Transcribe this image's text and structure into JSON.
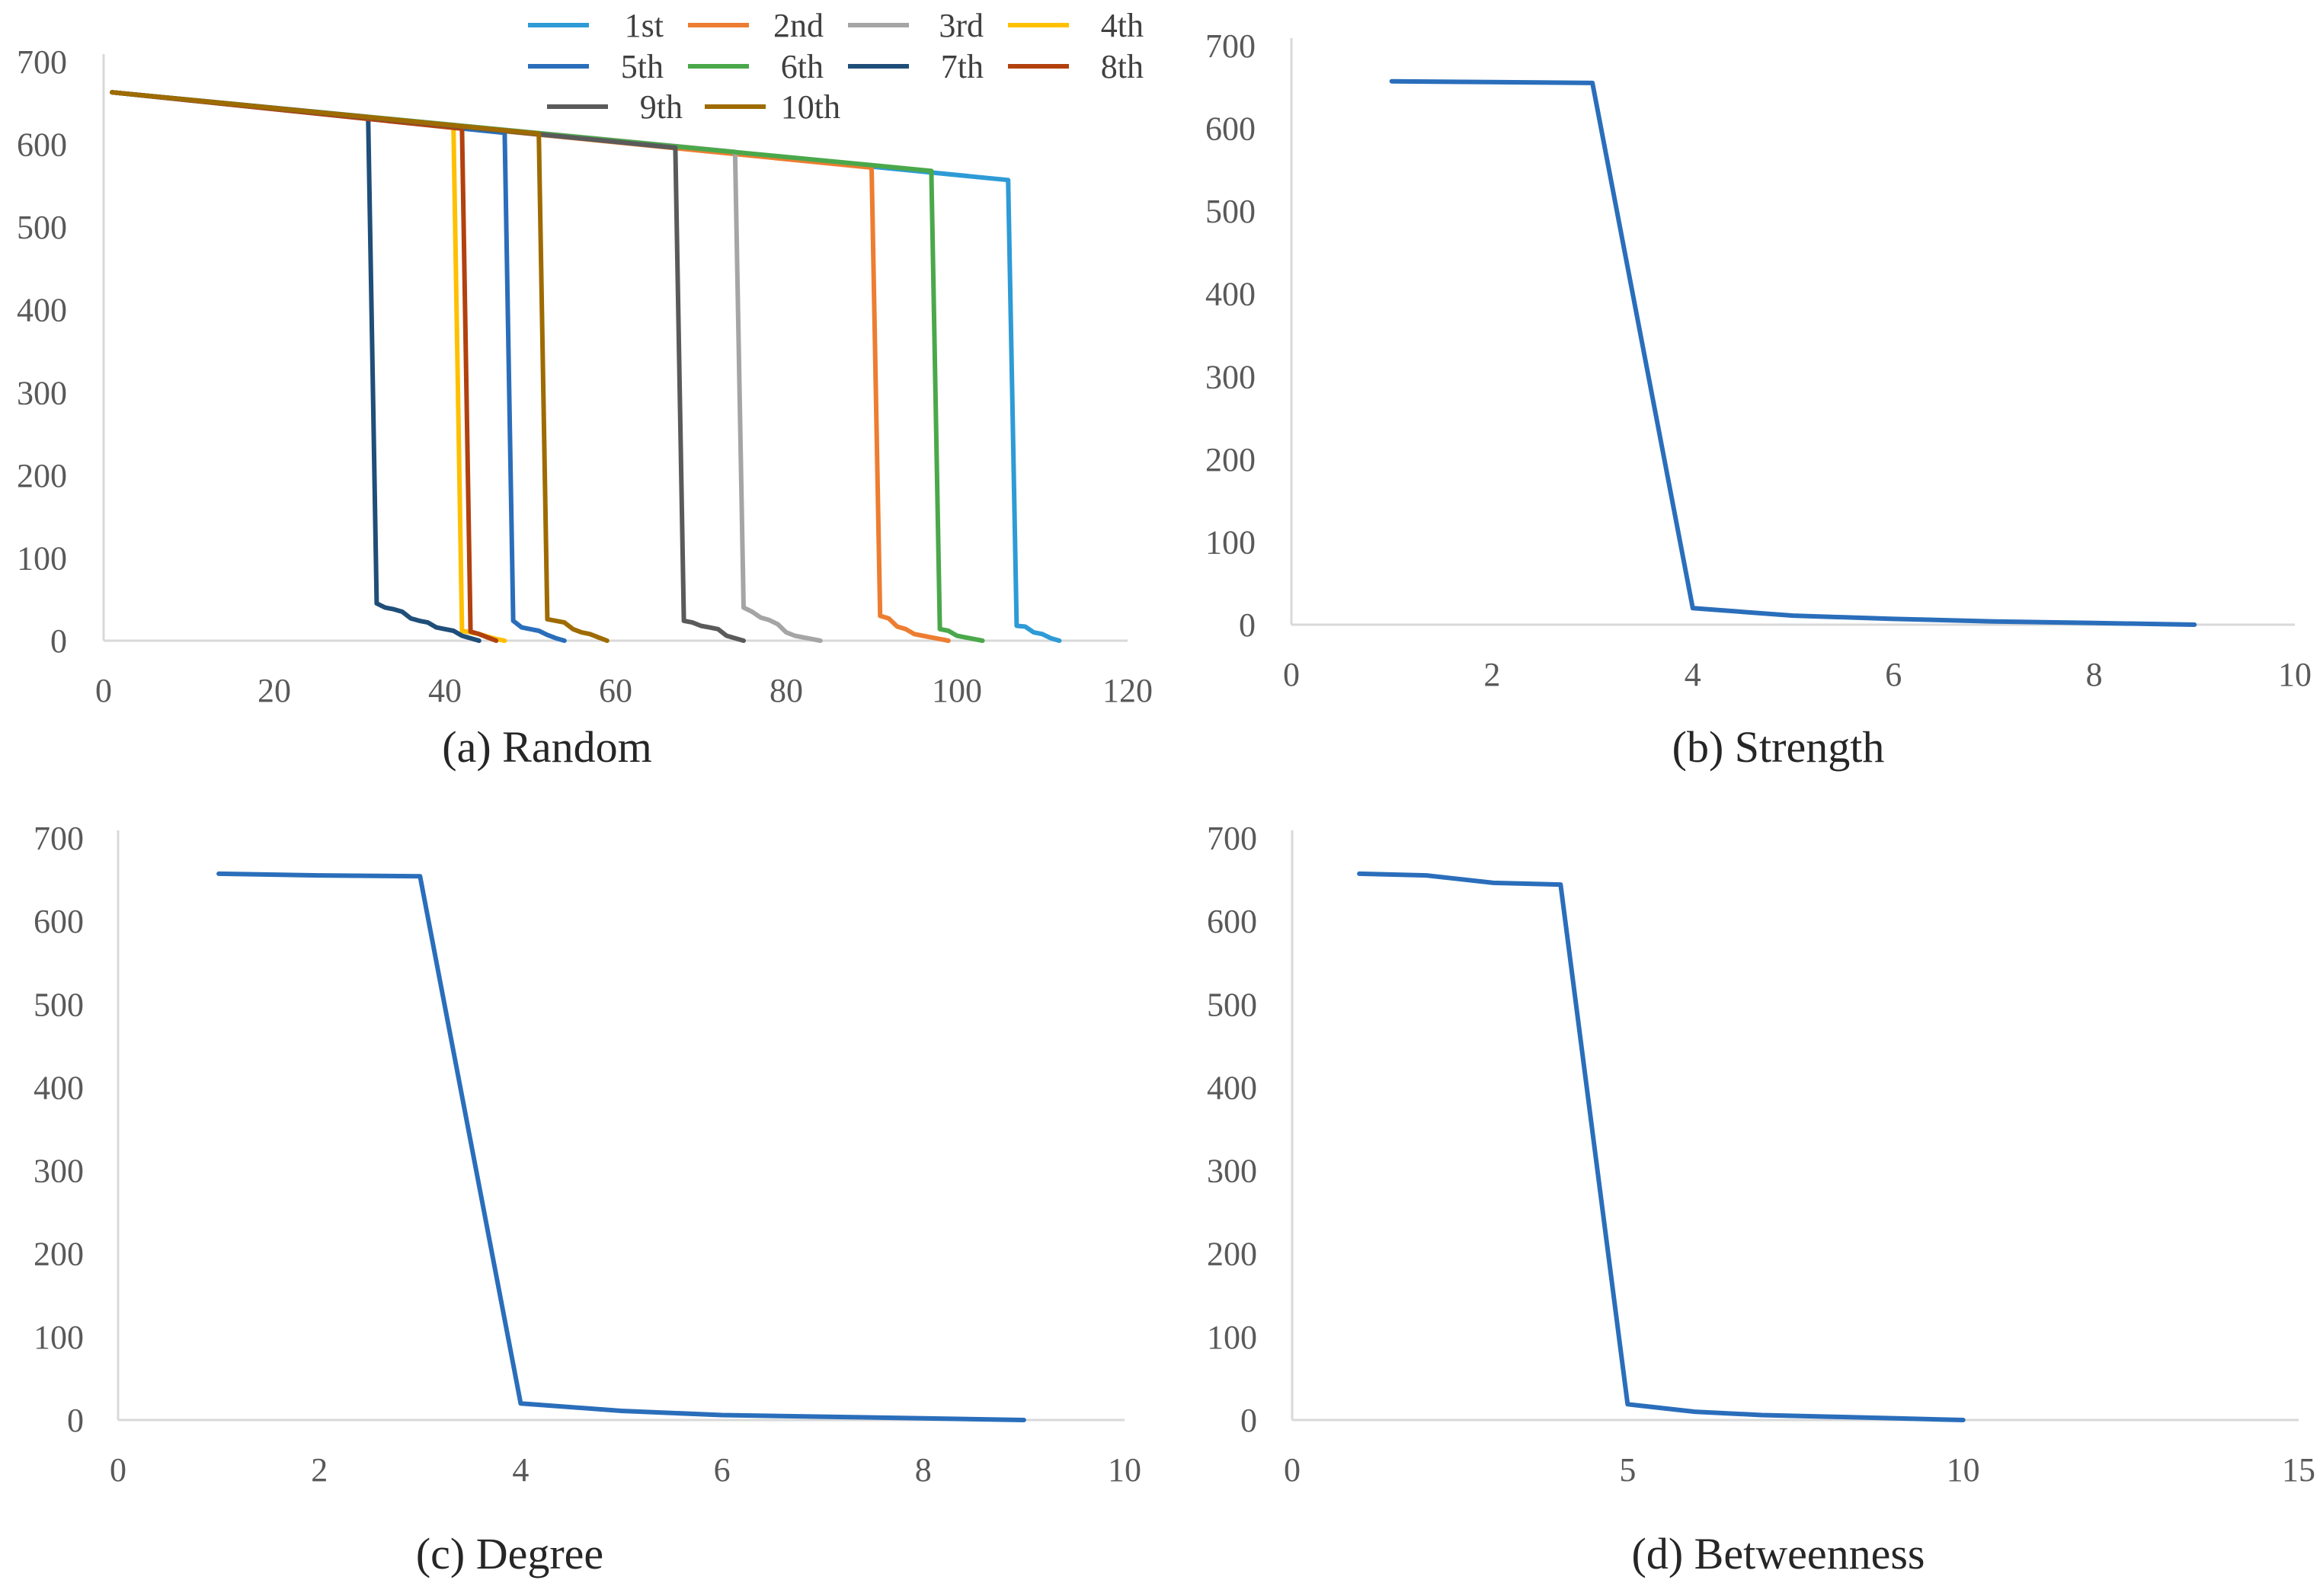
{
  "chart_data": [
    {
      "id": "random",
      "type": "line",
      "caption": "(a) Random",
      "xlim": [
        0,
        120
      ],
      "ylim": [
        0,
        700
      ],
      "xticks": [
        0,
        20,
        40,
        60,
        80,
        100,
        120
      ],
      "yticks": [
        0,
        100,
        200,
        300,
        400,
        500,
        600,
        700
      ],
      "legend_position": "top",
      "series": [
        {
          "name": "1st",
          "color": "#2e9bd6",
          "x": [
            1,
            106,
            107,
            108,
            109,
            110,
            111,
            112
          ],
          "y": [
            663,
            557,
            18,
            17,
            10,
            8,
            3,
            0
          ]
        },
        {
          "name": "2nd",
          "color": "#ed7d31",
          "x": [
            1,
            90,
            91,
            92,
            93,
            94,
            95,
            96,
            97,
            98,
            99
          ],
          "y": [
            663,
            572,
            30,
            27,
            17,
            14,
            8,
            6,
            4,
            2,
            0
          ]
        },
        {
          "name": "3rd",
          "color": "#a5a5a5",
          "x": [
            1,
            74,
            75,
            76,
            77,
            78,
            79,
            80,
            81,
            82,
            83,
            84
          ],
          "y": [
            663,
            591,
            40,
            35,
            28,
            25,
            20,
            10,
            6,
            4,
            2,
            0
          ]
        },
        {
          "name": "4th",
          "color": "#ffc000",
          "x": [
            1,
            41,
            42,
            43,
            44,
            45,
            46,
            47
          ],
          "y": [
            663,
            621,
            12,
            10,
            8,
            5,
            2,
            0
          ]
        },
        {
          "name": "5th",
          "color": "#2a6ebb",
          "x": [
            1,
            47,
            48,
            49,
            50,
            51,
            52,
            53,
            54
          ],
          "y": [
            663,
            614,
            24,
            16,
            14,
            12,
            7,
            3,
            0
          ]
        },
        {
          "name": "6th",
          "color": "#4aa84a",
          "x": [
            1,
            97,
            98,
            99,
            100,
            101,
            102,
            103
          ],
          "y": [
            663,
            568,
            14,
            12,
            6,
            4,
            2,
            0
          ]
        },
        {
          "name": "7th",
          "color": "#1f4e79",
          "x": [
            1,
            31,
            32,
            33,
            34,
            35,
            36,
            37,
            38,
            39,
            40,
            41,
            42,
            43,
            44
          ],
          "y": [
            663,
            633,
            45,
            40,
            38,
            35,
            27,
            24,
            22,
            16,
            14,
            12,
            6,
            3,
            0
          ]
        },
        {
          "name": "8th",
          "color": "#b2410e",
          "x": [
            1,
            42,
            43,
            44,
            45,
            46
          ],
          "y": [
            663,
            619,
            11,
            8,
            4,
            0
          ]
        },
        {
          "name": "9th",
          "color": "#5a5a5a",
          "x": [
            1,
            67,
            68,
            69,
            70,
            71,
            72,
            73,
            74,
            75
          ],
          "y": [
            663,
            596,
            24,
            22,
            18,
            16,
            14,
            6,
            3,
            0
          ]
        },
        {
          "name": "10th",
          "color": "#9e6b00",
          "x": [
            1,
            51,
            52,
            53,
            54,
            55,
            56,
            57,
            58,
            59
          ],
          "y": [
            663,
            613,
            26,
            24,
            22,
            14,
            10,
            8,
            4,
            0
          ]
        }
      ]
    },
    {
      "id": "strength",
      "type": "line",
      "caption": "(b) Strength",
      "xlim": [
        0,
        10
      ],
      "ylim": [
        0,
        700
      ],
      "xticks": [
        0,
        2,
        4,
        6,
        8,
        10
      ],
      "yticks": [
        0,
        100,
        200,
        300,
        400,
        500,
        600,
        700
      ],
      "series": [
        {
          "name": "Strength",
          "color": "#2a6ebb",
          "x": [
            1,
            2,
            3,
            4,
            5,
            6,
            7,
            8,
            9
          ],
          "y": [
            657,
            656,
            655,
            20,
            11,
            7,
            4,
            2,
            0
          ]
        }
      ]
    },
    {
      "id": "degree",
      "type": "line",
      "caption": "(c) Degree",
      "xlim": [
        0,
        10
      ],
      "ylim": [
        0,
        700
      ],
      "xticks": [
        0,
        2,
        4,
        6,
        8,
        10
      ],
      "yticks": [
        0,
        100,
        200,
        300,
        400,
        500,
        600,
        700
      ],
      "series": [
        {
          "name": "Degree",
          "color": "#2a6ebb",
          "x": [
            1,
            2,
            3,
            4,
            5,
            6,
            7,
            8,
            9
          ],
          "y": [
            657,
            655,
            654,
            20,
            11,
            6,
            4,
            2,
            0
          ]
        }
      ]
    },
    {
      "id": "betweenness",
      "type": "line",
      "caption": "(d) Betweenness",
      "xlim": [
        0,
        15
      ],
      "ylim": [
        0,
        700
      ],
      "xticks": [
        0,
        5,
        10,
        15
      ],
      "yticks": [
        0,
        100,
        200,
        300,
        400,
        500,
        600,
        700
      ],
      "series": [
        {
          "name": "Betweenness",
          "color": "#2a6ebb",
          "x": [
            1,
            2,
            3,
            4,
            5,
            6,
            7,
            8,
            9,
            10
          ],
          "y": [
            657,
            655,
            646,
            644,
            19,
            10,
            6,
            4,
            2,
            0
          ]
        }
      ]
    }
  ]
}
